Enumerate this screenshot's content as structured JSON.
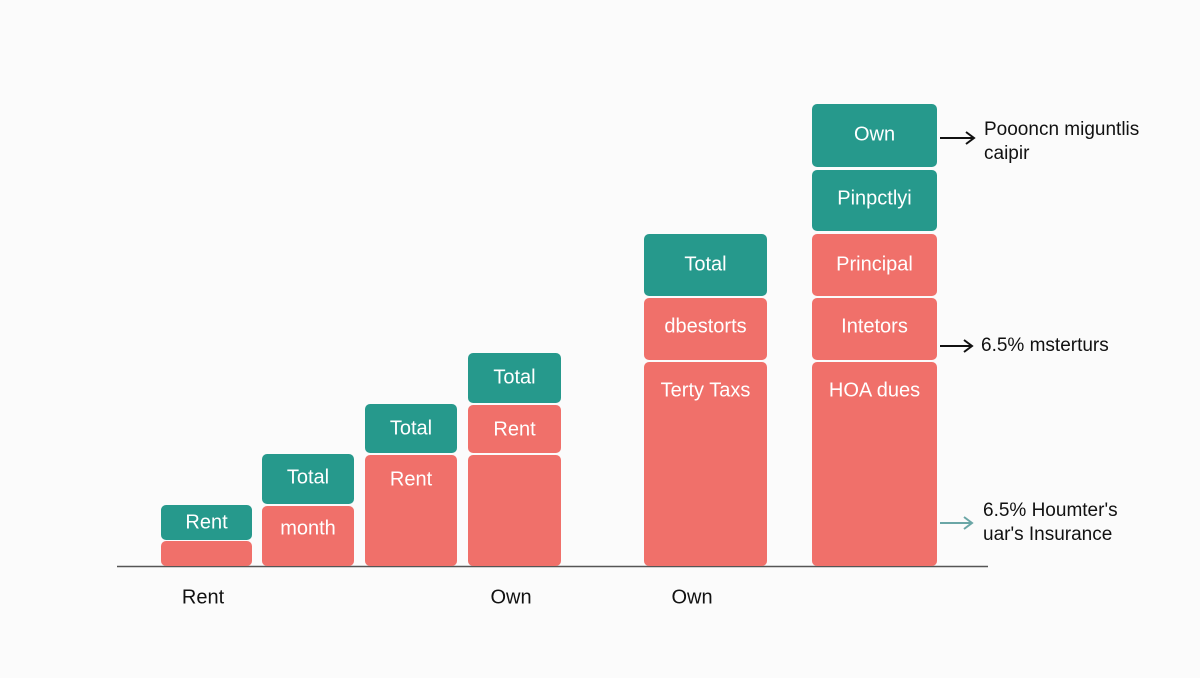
{
  "columns": [
    {
      "blocks": [
        {
          "label": "Rent",
          "kind": "teal"
        },
        {
          "kind": "salmon"
        }
      ]
    },
    {
      "blocks": [
        {
          "label": "Total",
          "kind": "teal"
        },
        {
          "label": "month",
          "kind": "salmon"
        }
      ]
    },
    {
      "blocks": [
        {
          "label": "Total",
          "kind": "teal"
        },
        {
          "label": "Rent",
          "kind": "salmon"
        }
      ]
    },
    {
      "blocks": [
        {
          "label": "Total",
          "kind": "teal"
        },
        {
          "label": "Rent",
          "kind": "salmon"
        },
        {
          "kind": "salmon"
        }
      ]
    },
    {
      "blocks": [
        {
          "label": "Total",
          "kind": "teal"
        },
        {
          "label": "dbestorts",
          "kind": "salmon"
        },
        {
          "label": "Terty Taxs",
          "kind": "salmon"
        }
      ]
    },
    {
      "blocks": [
        {
          "label": "Own",
          "kind": "teal"
        },
        {
          "label": "Pinpctlyi",
          "kind": "teal"
        },
        {
          "label": "Principal",
          "kind": "salmon"
        },
        {
          "label": "Intetors",
          "kind": "salmon"
        },
        {
          "label": "HOA dues",
          "kind": "salmon"
        }
      ]
    }
  ],
  "axis_labels": [
    "Rent",
    "Own",
    "Own"
  ],
  "annotations": [
    {
      "lines": [
        "Poooncn miguntlis",
        "caipir"
      ]
    },
    {
      "lines": [
        "6.5% msterturs"
      ]
    },
    {
      "lines": [
        "6.5% Houmter's",
        "uar's Insurance"
      ]
    }
  ]
}
